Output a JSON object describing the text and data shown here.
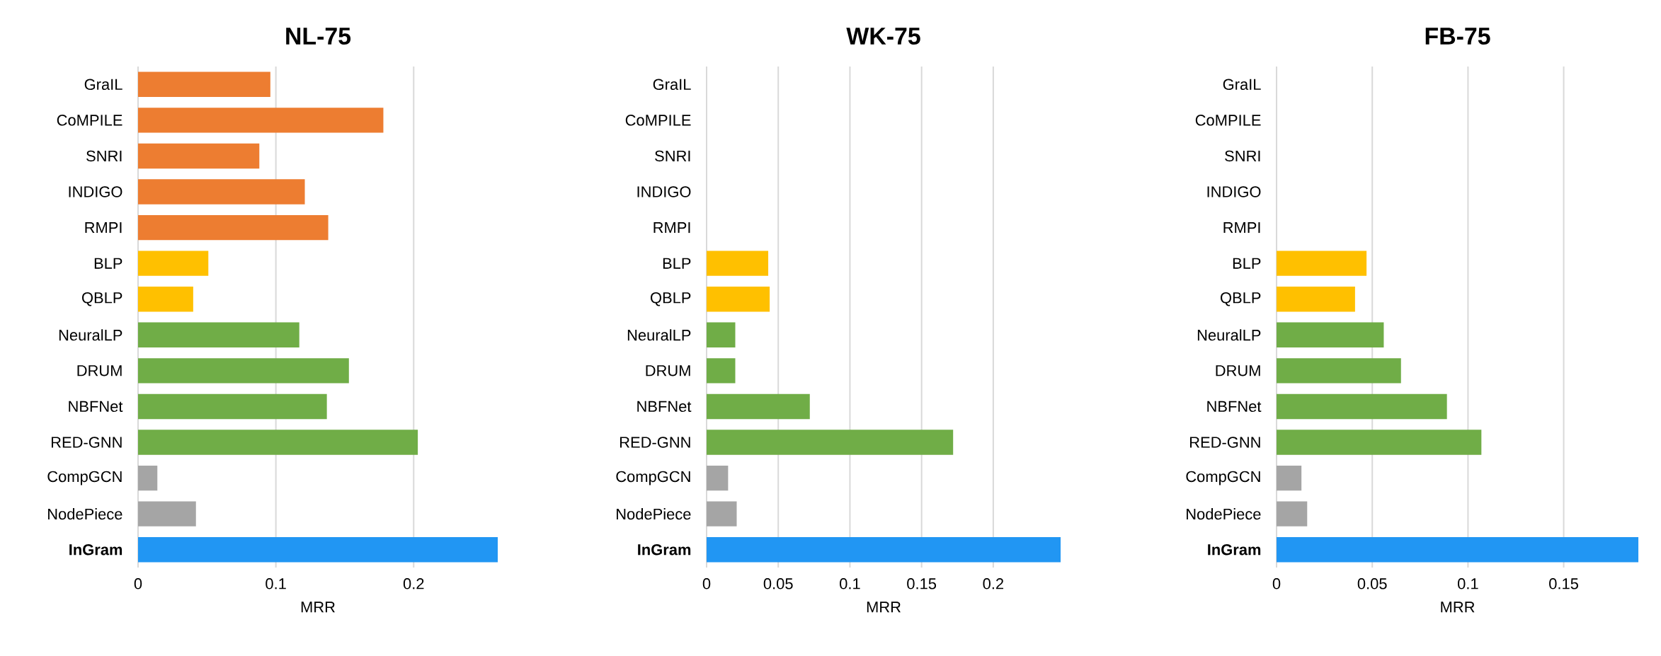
{
  "chart_data": [
    {
      "type": "bar",
      "orientation": "horizontal",
      "title": "NL-75",
      "xlabel": "MRR",
      "grid": "x",
      "categories": [
        "GraIL",
        "CoMPILE",
        "SNRI",
        "INDIGO",
        "RMPI",
        "BLP",
        "QBLP",
        "NeuralLP",
        "DRUM",
        "NBFNet",
        "RED-GNN",
        "CompGCN",
        "NodePiece",
        "**InGram**"
      ],
      "values": [
        0.096,
        0.178,
        0.088,
        0.121,
        0.138,
        0.051,
        0.04,
        0.117,
        0.153,
        0.137,
        0.203,
        0.014,
        0.042,
        0.261
      ],
      "colors": [
        "#ed7d31",
        "#ed7d31",
        "#ed7d31",
        "#ed7d31",
        "#ed7d31",
        "#ffc000",
        "#ffc000",
        "#70ad47",
        "#70ad47",
        "#70ad47",
        "#70ad47",
        "#a5a5a5",
        "#a5a5a5",
        "#2196f3"
      ],
      "xlim": [
        0,
        0.261
      ],
      "xticks": [
        0,
        0.1,
        0.2
      ]
    },
    {
      "type": "bar",
      "orientation": "horizontal",
      "title": "WK-75",
      "xlabel": "MRR",
      "grid": "x",
      "categories": [
        "GraIL",
        "CoMPILE",
        "SNRI",
        "INDIGO",
        "RMPI",
        "BLP",
        "QBLP",
        "NeuralLP",
        "DRUM",
        "NBFNet",
        "RED-GNN",
        "CompGCN",
        "NodePiece",
        "**InGram**"
      ],
      "values": [
        null,
        null,
        null,
        null,
        null,
        0.043,
        0.044,
        0.02,
        0.02,
        0.072,
        0.172,
        0.015,
        0.021,
        0.247
      ],
      "colors": [
        "#ed7d31",
        "#ed7d31",
        "#ed7d31",
        "#ed7d31",
        "#ed7d31",
        "#ffc000",
        "#ffc000",
        "#70ad47",
        "#70ad47",
        "#70ad47",
        "#70ad47",
        "#a5a5a5",
        "#a5a5a5",
        "#2196f3"
      ],
      "xlim": [
        0,
        0.247
      ],
      "xticks": [
        0,
        0.05,
        0.1,
        0.15,
        0.2
      ]
    },
    {
      "type": "bar",
      "orientation": "horizontal",
      "title": "FB-75",
      "xlabel": "MRR",
      "grid": "x",
      "categories": [
        "GraIL",
        "CoMPILE",
        "SNRI",
        "INDIGO",
        "RMPI",
        "BLP",
        "QBLP",
        "NeuralLP",
        "DRUM",
        "NBFNet",
        "RED-GNN",
        "CompGCN",
        "NodePiece",
        "**InGram**"
      ],
      "values": [
        null,
        null,
        null,
        null,
        null,
        0.047,
        0.041,
        0.056,
        0.065,
        0.089,
        0.107,
        0.013,
        0.016,
        0.189
      ],
      "colors": [
        "#ed7d31",
        "#ed7d31",
        "#ed7d31",
        "#ed7d31",
        "#ed7d31",
        "#ffc000",
        "#ffc000",
        "#70ad47",
        "#70ad47",
        "#70ad47",
        "#70ad47",
        "#a5a5a5",
        "#a5a5a5",
        "#2196f3"
      ],
      "xlim": [
        0,
        0.189
      ],
      "xticks": [
        0,
        0.05,
        0.1,
        0.15
      ]
    }
  ]
}
